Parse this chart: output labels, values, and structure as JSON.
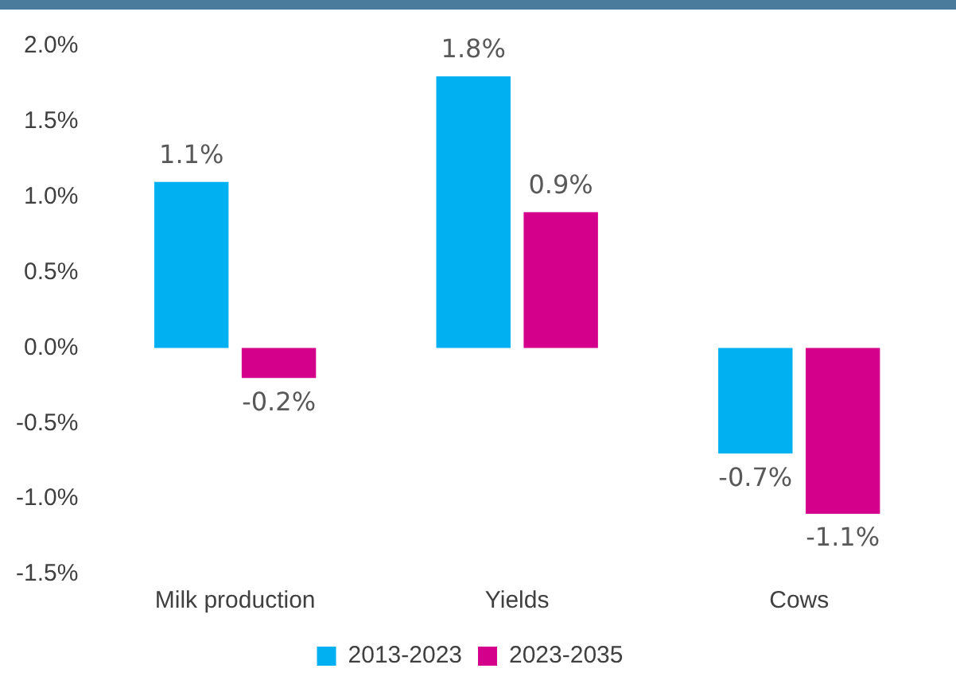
{
  "chart_data": {
    "type": "bar",
    "categories": [
      "Milk production",
      "Yields",
      "Cows"
    ],
    "series": [
      {
        "name": "2013-2023",
        "color": "#00b0f0",
        "values": [
          1.1,
          1.8,
          -0.7
        ],
        "value_labels": [
          "1.1%",
          "1.8%",
          "-0.7%"
        ]
      },
      {
        "name": "2023-2035",
        "color": "#d4008c",
        "values": [
          -0.2,
          0.9,
          -1.1
        ],
        "value_labels": [
          "-0.2%",
          "0.9%",
          "-1.1%"
        ]
      }
    ],
    "ylim": [
      -1.5,
      2.0
    ],
    "yticks": [
      {
        "value": -1.5,
        "label": "-1.5%"
      },
      {
        "value": -1.0,
        "label": "-1.0%"
      },
      {
        "value": -0.5,
        "label": "-0.5%"
      },
      {
        "value": 0,
        "label": "0.0%"
      },
      {
        "value": 0.5,
        "label": "0.5%"
      },
      {
        "value": 1.0,
        "label": "1.0%"
      },
      {
        "value": 1.5,
        "label": "1.5%"
      },
      {
        "value": 2.0,
        "label": "2.0%"
      }
    ],
    "grid": false,
    "legend": "bottom"
  }
}
